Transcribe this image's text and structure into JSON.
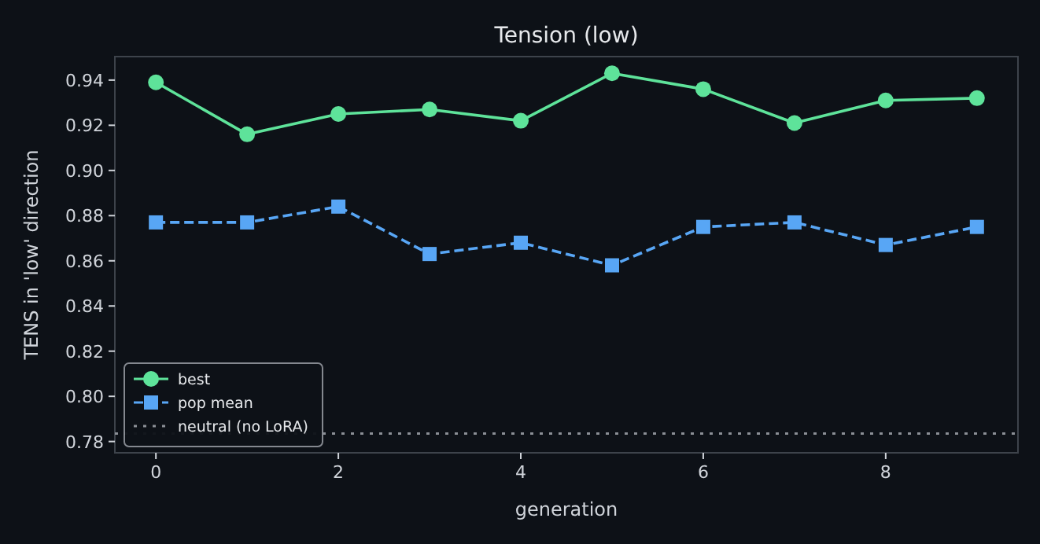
{
  "chart_data": {
    "type": "line",
    "title": "Tension (low)",
    "xlabel": "generation",
    "ylabel": "TENS in 'low' direction",
    "x": [
      0,
      1,
      2,
      3,
      4,
      5,
      6,
      7,
      8,
      9
    ],
    "series": [
      {
        "name": "best",
        "color": "#5ee39a",
        "marker": "circle",
        "line_style": "solid",
        "values": [
          0.939,
          0.916,
          0.925,
          0.927,
          0.922,
          0.943,
          0.936,
          0.921,
          0.931,
          0.932
        ]
      },
      {
        "name": "pop mean",
        "color": "#58a6f5",
        "marker": "square",
        "line_style": "dashed",
        "values": [
          0.877,
          0.877,
          0.884,
          0.863,
          0.868,
          0.858,
          0.875,
          0.877,
          0.867,
          0.875
        ]
      }
    ],
    "ref_lines": [
      {
        "axis": "y",
        "value": 0.7835,
        "label": "neutral (no LoRA)",
        "color": "#8b8f96",
        "line_style": "dotted"
      }
    ],
    "xlim": [
      -0.45,
      9.45
    ],
    "xticks": [
      0,
      2,
      4,
      6,
      8
    ],
    "ylim": [
      0.775,
      0.9504
    ],
    "yticks": [
      0.78,
      {
        "value": 0.8,
        "label": "0.80"
      },
      0.82,
      0.84,
      0.86,
      0.88,
      {
        "value": 0.9,
        "label": "0.90"
      },
      0.92,
      0.94
    ],
    "legend": "bottom left"
  }
}
